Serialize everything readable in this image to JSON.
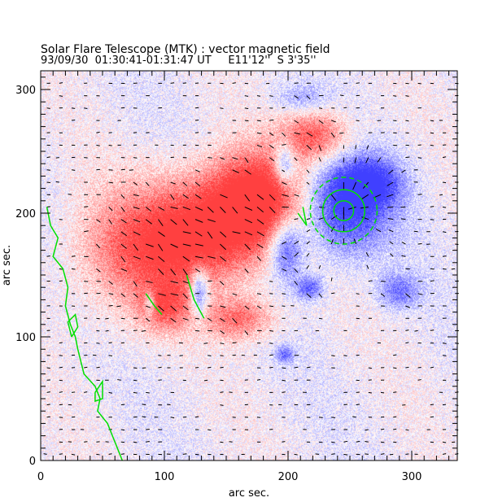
{
  "chart_data": {
    "type": "heatmap",
    "title": "Solar Flare Telescope (MTK) : vector magnetic field",
    "subtitle": "93/09/30  01:30:41-01:31:47 UT     E11'12''  S 3'35''",
    "xlabel": "arc sec.",
    "ylabel": "arc sec.",
    "xlim": [
      0,
      337
    ],
    "ylim": [
      0,
      315
    ],
    "xticks": [
      "0",
      "100",
      "200",
      "300"
    ],
    "yticks": [
      "0",
      "100",
      "200",
      "300"
    ],
    "colors": {
      "positive": "#ff0000",
      "negative": "#0000ff",
      "contour": "#00e000",
      "arrow": "#000000"
    },
    "positive_regions": [
      {
        "x": 140,
        "y": 195,
        "sx": 45,
        "sy": 30,
        "amp": 0.9
      },
      {
        "x": 175,
        "y": 215,
        "sx": 25,
        "sy": 25,
        "amp": 0.9
      },
      {
        "x": 222,
        "y": 262,
        "sx": 20,
        "sy": 15,
        "amp": 0.85
      },
      {
        "x": 100,
        "y": 125,
        "sx": 15,
        "sy": 15,
        "amp": 0.7
      },
      {
        "x": 160,
        "y": 115,
        "sx": 20,
        "sy": 12,
        "amp": 0.7
      },
      {
        "x": 110,
        "y": 170,
        "sx": 40,
        "sy": 25,
        "amp": 0.6
      },
      {
        "x": 60,
        "y": 160,
        "sx": 30,
        "sy": 40,
        "amp": 0.3
      }
    ],
    "negative_regions": [
      {
        "x": 245,
        "y": 205,
        "sx": 25,
        "sy": 28,
        "amp": 1.0
      },
      {
        "x": 268,
        "y": 225,
        "sx": 18,
        "sy": 14,
        "amp": 0.7
      },
      {
        "x": 197,
        "y": 240,
        "sx": 6,
        "sy": 12,
        "amp": 0.8
      },
      {
        "x": 198,
        "y": 172,
        "sx": 10,
        "sy": 18,
        "amp": 0.9
      },
      {
        "x": 128,
        "y": 137,
        "sx": 5,
        "sy": 14,
        "amp": 0.9
      },
      {
        "x": 88,
        "y": 128,
        "sx": 3,
        "sy": 8,
        "amp": 0.6
      },
      {
        "x": 217,
        "y": 140,
        "sx": 8,
        "sy": 7,
        "amp": 0.7
      },
      {
        "x": 289,
        "y": 137,
        "sx": 12,
        "sy": 10,
        "amp": 0.6
      },
      {
        "x": 197,
        "y": 86,
        "sx": 5,
        "sy": 5,
        "amp": 0.6
      },
      {
        "x": 210,
        "y": 293,
        "sx": 15,
        "sy": 8,
        "amp": 0.35
      }
    ],
    "contours": [
      {
        "points": [
          [
            5,
            205
          ],
          [
            8,
            190
          ],
          [
            14,
            180
          ],
          [
            10,
            165
          ],
          [
            18,
            155
          ],
          [
            22,
            140
          ],
          [
            20,
            125
          ],
          [
            24,
            110
          ],
          [
            28,
            100
          ],
          [
            30,
            90
          ],
          [
            35,
            70
          ],
          [
            44,
            60
          ],
          [
            48,
            50
          ],
          [
            46,
            40
          ],
          [
            54,
            30
          ],
          [
            58,
            20
          ],
          [
            62,
            10
          ],
          [
            66,
            0
          ]
        ]
      },
      {
        "points": [
          [
            25,
            100
          ],
          [
            30,
            108
          ],
          [
            28,
            118
          ],
          [
            22,
            112
          ],
          [
            25,
            100
          ]
        ]
      },
      {
        "points": [
          [
            44,
            55
          ],
          [
            50,
            64
          ],
          [
            50,
            50
          ],
          [
            44,
            48
          ],
          [
            44,
            55
          ]
        ]
      },
      {
        "circle": [
          245,
          202,
          8
        ]
      },
      {
        "circle": [
          245,
          202,
          17
        ]
      },
      {
        "circle": [
          245,
          202,
          27
        ]
      },
      {
        "points": [
          [
            85,
            135
          ],
          [
            92,
            125
          ],
          [
            98,
            118
          ]
        ]
      },
      {
        "points": [
          [
            118,
            150
          ],
          [
            124,
            130
          ],
          [
            132,
            115
          ]
        ]
      },
      {
        "points": [
          [
            212,
            205
          ],
          [
            215,
            190
          ],
          [
            208,
            200
          ]
        ]
      }
    ],
    "vector_grid_spacing": 10,
    "vector_center": [
      245,
      202
    ]
  }
}
